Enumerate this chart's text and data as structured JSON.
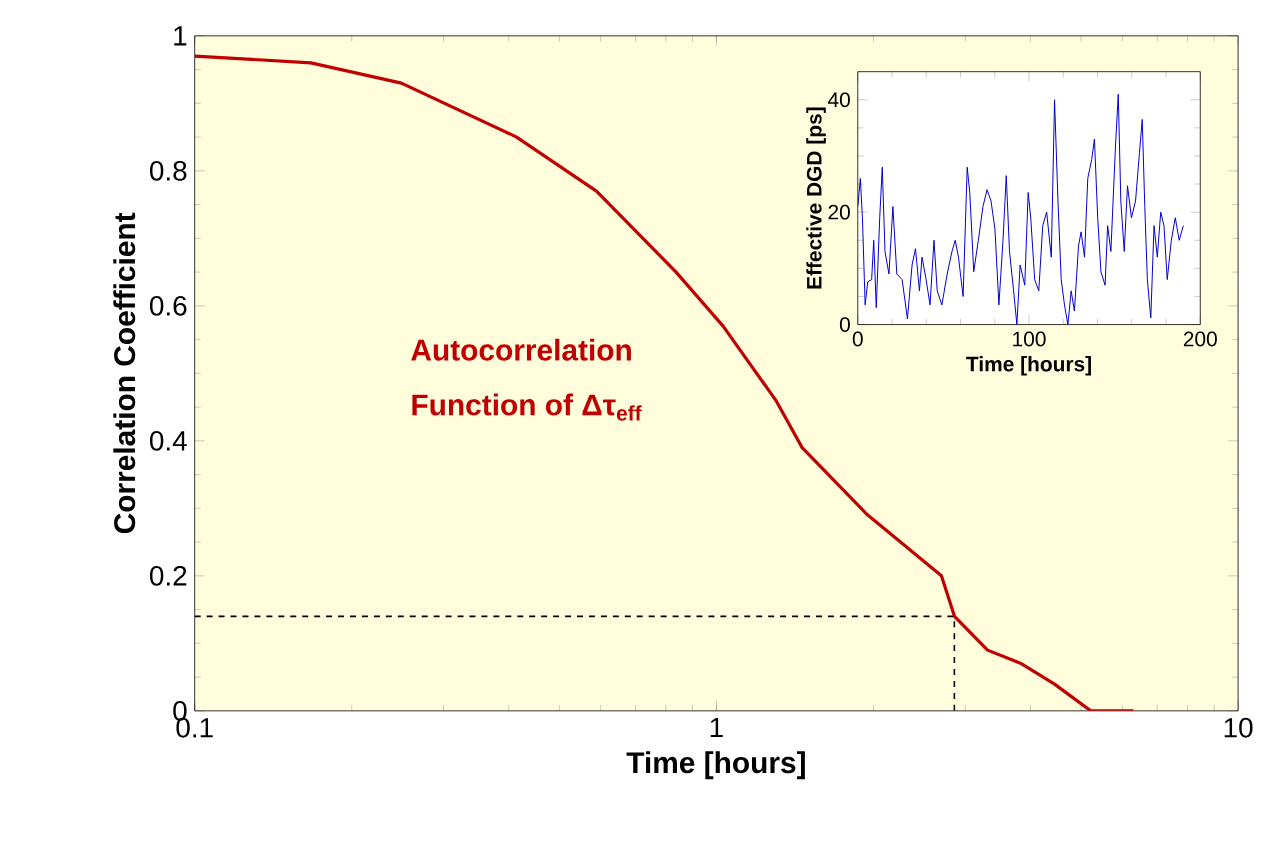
{
  "chart_data": [
    {
      "type": "line",
      "xlabel": "Time  [hours]",
      "ylabel": "Correlation Coefficient",
      "log": "x",
      "xlim": [
        0.1,
        10
      ],
      "xticks": [
        0.1,
        1,
        10
      ],
      "ylim": [
        0,
        1
      ],
      "yticks": [
        0,
        0.2,
        0.4,
        0.6,
        0.8,
        1
      ],
      "series": [
        {
          "color": "#c00000",
          "x": [
            0.1,
            0.167,
            0.249,
            0.414,
            0.589,
            0.837,
            1.03,
            1.3,
            1.46,
            1.95,
            2.7,
            2.86,
            3.31,
            3.84,
            4.44,
            5.22,
            6.3
          ],
          "values": [
            0.97,
            0.96,
            0.93,
            0.85,
            0.77,
            0.65,
            0.57,
            0.46,
            0.39,
            0.29,
            0.2,
            0.14,
            0.09,
            0.07,
            0.04,
            0,
            0
          ]
        },
        {
          "color": "#000000",
          "line_style": "dashed",
          "x": [
            0.1,
            2.86,
            2.86
          ],
          "values": [
            0.14,
            0.14,
            0
          ]
        }
      ],
      "annotations": [
        "Autocorrelation",
        "Function of Δτ$_{eff}$"
      ]
    },
    {
      "type": "line",
      "xlabel": "Time  [hours]",
      "ylabel": "Effective DGD  [ps]",
      "xlim": [
        0,
        200
      ],
      "xticks": [
        0,
        100,
        200
      ],
      "ylim": [
        0,
        45
      ],
      "yticks": [
        0,
        20,
        40
      ],
      "series": [
        {
          "color": "#0000cc",
          "x": [
            0,
            1.5,
            2.7,
            4.3,
            5.8,
            8.1,
            9.3,
            10.8,
            12.8,
            14.3,
            15.9,
            18.2,
            20.5,
            22.8,
            25.9,
            29,
            31.7,
            33.7,
            36,
            37.5,
            39.9,
            42.2,
            44.5,
            46.4,
            49.1,
            52.2,
            55,
            56.9,
            58.8,
            61.5,
            63.9,
            65.4,
            67.7,
            70.4,
            73.1,
            75.5,
            77.8,
            80.1,
            82.4,
            84.8,
            86.7,
            88.6,
            91,
            92.9,
            94.8,
            97.5,
            99.5,
            101,
            103.3,
            105.7,
            108,
            110.3,
            113,
            114.9,
            116.9,
            118.8,
            120.7,
            122.7,
            124.6,
            126.5,
            128.9,
            130.4,
            132.4,
            134.3,
            136.6,
            138.2,
            140.1,
            142,
            144.4,
            145.9,
            147.8,
            150.5,
            152.1,
            153.6,
            155.6,
            157.5,
            159.8,
            162.2,
            164.5,
            166.1,
            167.6,
            169.1,
            171.1,
            173,
            174.9,
            176.9,
            178.8,
            180.7,
            183.1,
            185.4,
            187.7,
            190.1
          ],
          "values": [
            21,
            26,
            19,
            3.5,
            7.6,
            8,
            15,
            3,
            19,
            28,
            13,
            9,
            21,
            9,
            8,
            1,
            10.6,
            13.5,
            6,
            12,
            8,
            3.5,
            15,
            6,
            3.5,
            9,
            13,
            15,
            12,
            5,
            28,
            23.5,
            9.4,
            15,
            21,
            24,
            22,
            17,
            3.5,
            15,
            26.5,
            13,
            6,
            0,
            10.6,
            7,
            23.5,
            19,
            8,
            6,
            17.6,
            20,
            12,
            40,
            22,
            8,
            3.5,
            0,
            6,
            2.4,
            14,
            16.5,
            12,
            26,
            29.4,
            33,
            19,
            9.4,
            7,
            17.6,
            13,
            31.8,
            41,
            22,
            13,
            24.7,
            19,
            22,
            30.6,
            36.5,
            21,
            8,
            1.2,
            17.6,
            12,
            20,
            17.6,
            8,
            15,
            19,
            15,
            17.6
          ]
        }
      ]
    }
  ]
}
